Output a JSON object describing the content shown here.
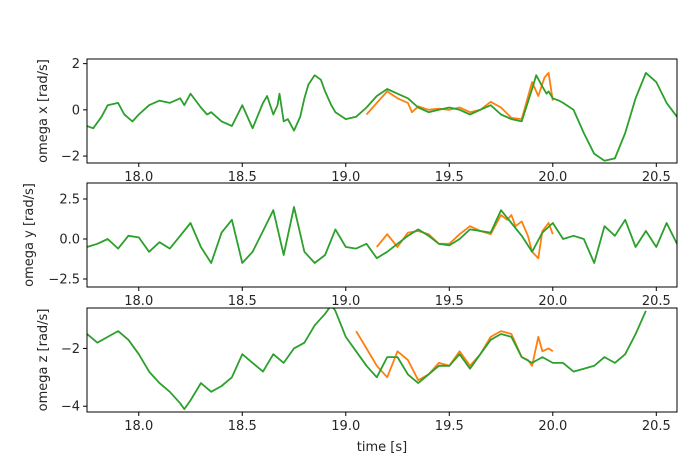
{
  "chart_data": [
    {
      "type": "line",
      "ylabel": "omega x [rad/s]",
      "xlabel": "",
      "xlim": [
        17.75,
        20.6
      ],
      "ylim": [
        -2.3,
        2.2
      ],
      "xticks": [
        "18.0",
        "18.5",
        "19.0",
        "19.5",
        "20.0",
        "20.5"
      ],
      "yticks": [
        "2",
        "0",
        "−2"
      ],
      "ytick_values": [
        2,
        0,
        -2
      ],
      "series": [
        {
          "color": "#ff7f0e",
          "x": [
            19.1,
            19.15,
            19.2,
            19.25,
            19.3,
            19.32,
            19.35,
            19.4,
            19.45,
            19.5,
            19.55,
            19.6,
            19.65,
            19.7,
            19.75,
            19.8,
            19.85,
            19.9,
            19.93,
            19.96,
            19.98,
            20.0
          ],
          "y": [
            -0.2,
            0.3,
            0.8,
            0.5,
            0.3,
            -0.1,
            0.15,
            0.0,
            0.05,
            0.0,
            0.1,
            -0.1,
            0.0,
            0.35,
            0.1,
            -0.35,
            -0.4,
            1.2,
            0.6,
            1.4,
            1.6,
            0.4
          ]
        },
        {
          "color": "#2ca02c",
          "x": [
            17.75,
            17.78,
            17.82,
            17.85,
            17.9,
            17.93,
            17.97,
            18.0,
            18.05,
            18.1,
            18.15,
            18.2,
            18.22,
            18.25,
            18.3,
            18.33,
            18.35,
            18.4,
            18.45,
            18.5,
            18.55,
            18.6,
            18.62,
            18.65,
            18.67,
            18.68,
            18.7,
            18.72,
            18.75,
            18.78,
            18.8,
            18.82,
            18.85,
            18.88,
            18.9,
            18.93,
            18.95,
            19.0,
            19.05,
            19.1,
            19.15,
            19.2,
            19.25,
            19.3,
            19.35,
            19.4,
            19.45,
            19.5,
            19.55,
            19.6,
            19.65,
            19.7,
            19.75,
            19.8,
            19.85,
            19.9,
            19.92,
            19.95,
            19.97,
            19.98,
            20.0,
            20.03,
            20.05,
            20.1,
            20.15,
            20.2,
            20.25,
            20.3,
            20.35,
            20.4,
            20.45,
            20.5,
            20.55,
            20.6
          ],
          "y": [
            -0.7,
            -0.8,
            -0.3,
            0.2,
            0.3,
            -0.2,
            -0.5,
            -0.2,
            0.2,
            0.4,
            0.3,
            0.5,
            0.2,
            0.7,
            0.1,
            -0.2,
            -0.1,
            -0.5,
            -0.7,
            0.2,
            -0.8,
            0.3,
            0.6,
            -0.2,
            0.2,
            0.7,
            -0.5,
            -0.4,
            -0.9,
            -0.3,
            0.5,
            1.1,
            1.5,
            1.3,
            0.8,
            0.2,
            -0.1,
            -0.4,
            -0.3,
            0.1,
            0.6,
            0.9,
            0.7,
            0.5,
            0.1,
            -0.1,
            0.0,
            0.1,
            0.0,
            -0.2,
            0.0,
            0.2,
            -0.2,
            -0.4,
            -0.5,
            0.9,
            1.5,
            1.0,
            0.7,
            0.8,
            0.5,
            0.4,
            0.3,
            0.0,
            -1.0,
            -1.9,
            -2.2,
            -2.1,
            -1.0,
            0.5,
            1.6,
            1.2,
            0.3,
            -0.3
          ]
        }
      ]
    },
    {
      "type": "line",
      "ylabel": "omega y [rad/s]",
      "xlabel": "",
      "xlim": [
        17.75,
        20.6
      ],
      "ylim": [
        -3.0,
        3.5
      ],
      "xticks": [
        "18.0",
        "18.5",
        "19.0",
        "19.5",
        "20.0",
        "20.5"
      ],
      "yticks": [
        "2.5",
        "0.0",
        "−2.5"
      ],
      "ytick_values": [
        2.5,
        0,
        -2.5
      ],
      "series": [
        {
          "color": "#ff7f0e",
          "x": [
            19.15,
            19.2,
            19.25,
            19.3,
            19.35,
            19.4,
            19.45,
            19.5,
            19.55,
            19.6,
            19.65,
            19.7,
            19.75,
            19.78,
            19.8,
            19.82,
            19.85,
            19.88,
            19.9,
            19.93,
            19.95,
            19.98,
            20.0
          ],
          "y": [
            -0.5,
            0.3,
            -0.5,
            0.4,
            0.5,
            0.3,
            -0.3,
            -0.3,
            0.3,
            0.8,
            0.5,
            0.3,
            1.5,
            1.2,
            1.5,
            0.8,
            1.1,
            0.2,
            -0.8,
            -1.2,
            0.5,
            1.0,
            0.3
          ]
        },
        {
          "color": "#2ca02c",
          "x": [
            17.75,
            17.8,
            17.85,
            17.9,
            17.95,
            18.0,
            18.05,
            18.1,
            18.15,
            18.2,
            18.25,
            18.3,
            18.35,
            18.4,
            18.45,
            18.5,
            18.55,
            18.6,
            18.65,
            18.7,
            18.75,
            18.8,
            18.85,
            18.9,
            18.95,
            19.0,
            19.05,
            19.1,
            19.15,
            19.2,
            19.25,
            19.3,
            19.35,
            19.4,
            19.45,
            19.5,
            19.55,
            19.6,
            19.65,
            19.7,
            19.75,
            19.8,
            19.85,
            19.9,
            19.95,
            20.0,
            20.05,
            20.1,
            20.15,
            20.2,
            20.25,
            20.3,
            20.35,
            20.4,
            20.45,
            20.5,
            20.55,
            20.6
          ],
          "y": [
            -0.5,
            -0.3,
            0.0,
            -0.6,
            0.2,
            0.1,
            -0.8,
            -0.2,
            -0.6,
            0.2,
            1.0,
            -0.5,
            -1.5,
            0.4,
            1.2,
            -1.5,
            -0.8,
            0.5,
            1.8,
            -1.0,
            2.0,
            -0.8,
            -1.5,
            -1.0,
            0.6,
            -0.5,
            -0.6,
            -0.3,
            -1.2,
            -0.8,
            -0.3,
            0.2,
            0.6,
            0.2,
            -0.3,
            -0.4,
            0.0,
            0.6,
            0.5,
            0.4,
            1.8,
            1.0,
            0.2,
            -0.8,
            0.4,
            1.0,
            0.0,
            0.2,
            0.0,
            -1.5,
            0.8,
            0.2,
            1.2,
            -0.5,
            0.5,
            -0.5,
            1.0,
            -0.3
          ]
        }
      ]
    },
    {
      "type": "line",
      "ylabel": "omega z [rad/s]",
      "xlabel": "time [s]",
      "xlim": [
        17.75,
        20.6
      ],
      "ylim": [
        -4.2,
        -0.6
      ],
      "xticks": [
        "18.0",
        "18.5",
        "19.0",
        "19.5",
        "20.0",
        "20.5"
      ],
      "yticks": [
        "−2",
        "−4"
      ],
      "ytick_values": [
        -2,
        -4
      ],
      "series": [
        {
          "color": "#ff7f0e",
          "x": [
            19.05,
            19.1,
            19.15,
            19.2,
            19.25,
            19.3,
            19.35,
            19.4,
            19.45,
            19.5,
            19.55,
            19.6,
            19.65,
            19.7,
            19.75,
            19.8,
            19.85,
            19.88,
            19.9,
            19.93,
            19.95,
            19.98,
            20.0
          ],
          "y": [
            -1.4,
            -2.0,
            -2.6,
            -3.0,
            -2.1,
            -2.4,
            -3.1,
            -2.9,
            -2.5,
            -2.6,
            -2.1,
            -2.6,
            -2.2,
            -1.6,
            -1.4,
            -1.5,
            -2.3,
            -2.4,
            -2.6,
            -1.6,
            -2.1,
            -2.0,
            -2.1
          ]
        },
        {
          "color": "#2ca02c",
          "x": [
            17.75,
            17.8,
            17.85,
            17.9,
            17.95,
            18.0,
            18.05,
            18.1,
            18.15,
            18.2,
            18.22,
            18.25,
            18.3,
            18.35,
            18.4,
            18.45,
            18.5,
            18.55,
            18.6,
            18.65,
            18.7,
            18.75,
            18.8,
            18.85,
            18.9,
            18.93,
            18.95,
            19.0,
            19.05,
            19.1,
            19.15,
            19.2,
            19.25,
            19.3,
            19.35,
            19.4,
            19.45,
            19.5,
            19.55,
            19.6,
            19.65,
            19.7,
            19.75,
            19.8,
            19.85,
            19.9,
            19.95,
            20.0,
            20.05,
            20.1,
            20.15,
            20.2,
            20.25,
            20.3,
            20.35,
            20.4,
            20.45
          ],
          "y": [
            -1.5,
            -1.8,
            -1.6,
            -1.4,
            -1.7,
            -2.2,
            -2.8,
            -3.2,
            -3.5,
            -3.9,
            -4.1,
            -3.8,
            -3.2,
            -3.5,
            -3.3,
            -3.0,
            -2.2,
            -2.5,
            -2.8,
            -2.2,
            -2.5,
            -2.0,
            -1.8,
            -1.2,
            -0.8,
            -0.5,
            -0.7,
            -1.6,
            -2.1,
            -2.6,
            -3.0,
            -2.3,
            -2.3,
            -2.9,
            -3.2,
            -2.9,
            -2.6,
            -2.6,
            -2.2,
            -2.7,
            -2.2,
            -1.7,
            -1.5,
            -1.6,
            -2.3,
            -2.5,
            -2.3,
            -2.5,
            -2.5,
            -2.8,
            -2.7,
            -2.6,
            -2.3,
            -2.5,
            -2.2,
            -1.5,
            -0.7
          ]
        }
      ]
    }
  ]
}
